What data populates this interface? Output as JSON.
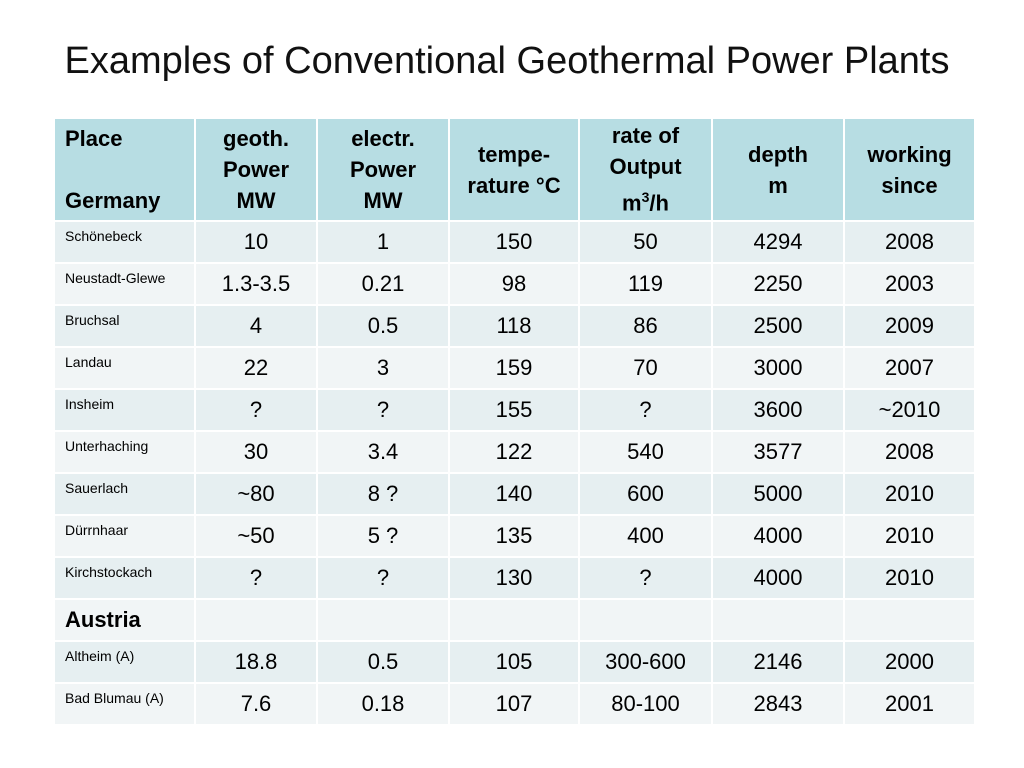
{
  "title": "Examples of Conventional Geothermal Power Plants",
  "header": {
    "place": [
      "Place",
      "Germany"
    ],
    "geoth_power": [
      "geoth.",
      "Power",
      "MW"
    ],
    "electr_power": [
      "electr.",
      "Power",
      "MW"
    ],
    "temperature": [
      "tempe-",
      "rature °C"
    ],
    "rate_of_output": [
      "rate of",
      "Output"
    ],
    "rate_unit": {
      "base": "m",
      "sup": "3",
      "rest": "/h"
    },
    "depth": [
      "depth",
      "m"
    ],
    "working_since": [
      "working",
      "since"
    ]
  },
  "rows": [
    {
      "place": "Schönebeck",
      "geoth": "10",
      "electr": "1",
      "temp": "150",
      "rate": "50",
      "depth": "4294",
      "since": "2008"
    },
    {
      "place": "Neustadt-Glewe",
      "geoth": "1.3-3.5",
      "electr": "0.21",
      "temp": "98",
      "rate": "119",
      "depth": "2250",
      "since": "2003"
    },
    {
      "place": "Bruchsal",
      "geoth": "4",
      "electr": "0.5",
      "temp": "118",
      "rate": "86",
      "depth": "2500",
      "since": "2009"
    },
    {
      "place": "Landau",
      "geoth": "22",
      "electr": "3",
      "temp": "159",
      "rate": "70",
      "depth": "3000",
      "since": "2007"
    },
    {
      "place": "Insheim",
      "geoth": "?",
      "electr": "?",
      "temp": "155",
      "rate": "?",
      "depth": "3600",
      "since": "~2010"
    },
    {
      "place": "Unterhaching",
      "geoth": "30",
      "electr": "3.4",
      "temp": "122",
      "rate": "540",
      "depth": "3577",
      "since": "2008"
    },
    {
      "place": "Sauerlach",
      "geoth": "~80",
      "electr": "8 ?",
      "temp": "140",
      "rate": "600",
      "depth": "5000",
      "since": "2010"
    },
    {
      "place": "Dürrnhaar",
      "geoth": "~50",
      "electr": "5 ?",
      "temp": "135",
      "rate": "400",
      "depth": "4000",
      "since": "2010"
    },
    {
      "place": "Kirchstockach",
      "geoth": "?",
      "electr": "?",
      "temp": "130",
      "rate": "?",
      "depth": "4000",
      "since": "2010"
    },
    {
      "group": "Austria"
    },
    {
      "place": "Altheim (A)",
      "geoth": "18.8",
      "electr": "0.5",
      "temp": "105",
      "rate": "300-600",
      "depth": "2146",
      "since": "2000"
    },
    {
      "place": "Bad Blumau (A)",
      "geoth": "7.6",
      "electr": "0.18",
      "temp": "107",
      "rate": "80-100",
      "depth": "2843",
      "since": "2001"
    }
  ],
  "colors": {
    "header_bg": "#b7dde3",
    "row_odd": "#e6eff1",
    "row_even": "#f1f5f6"
  }
}
